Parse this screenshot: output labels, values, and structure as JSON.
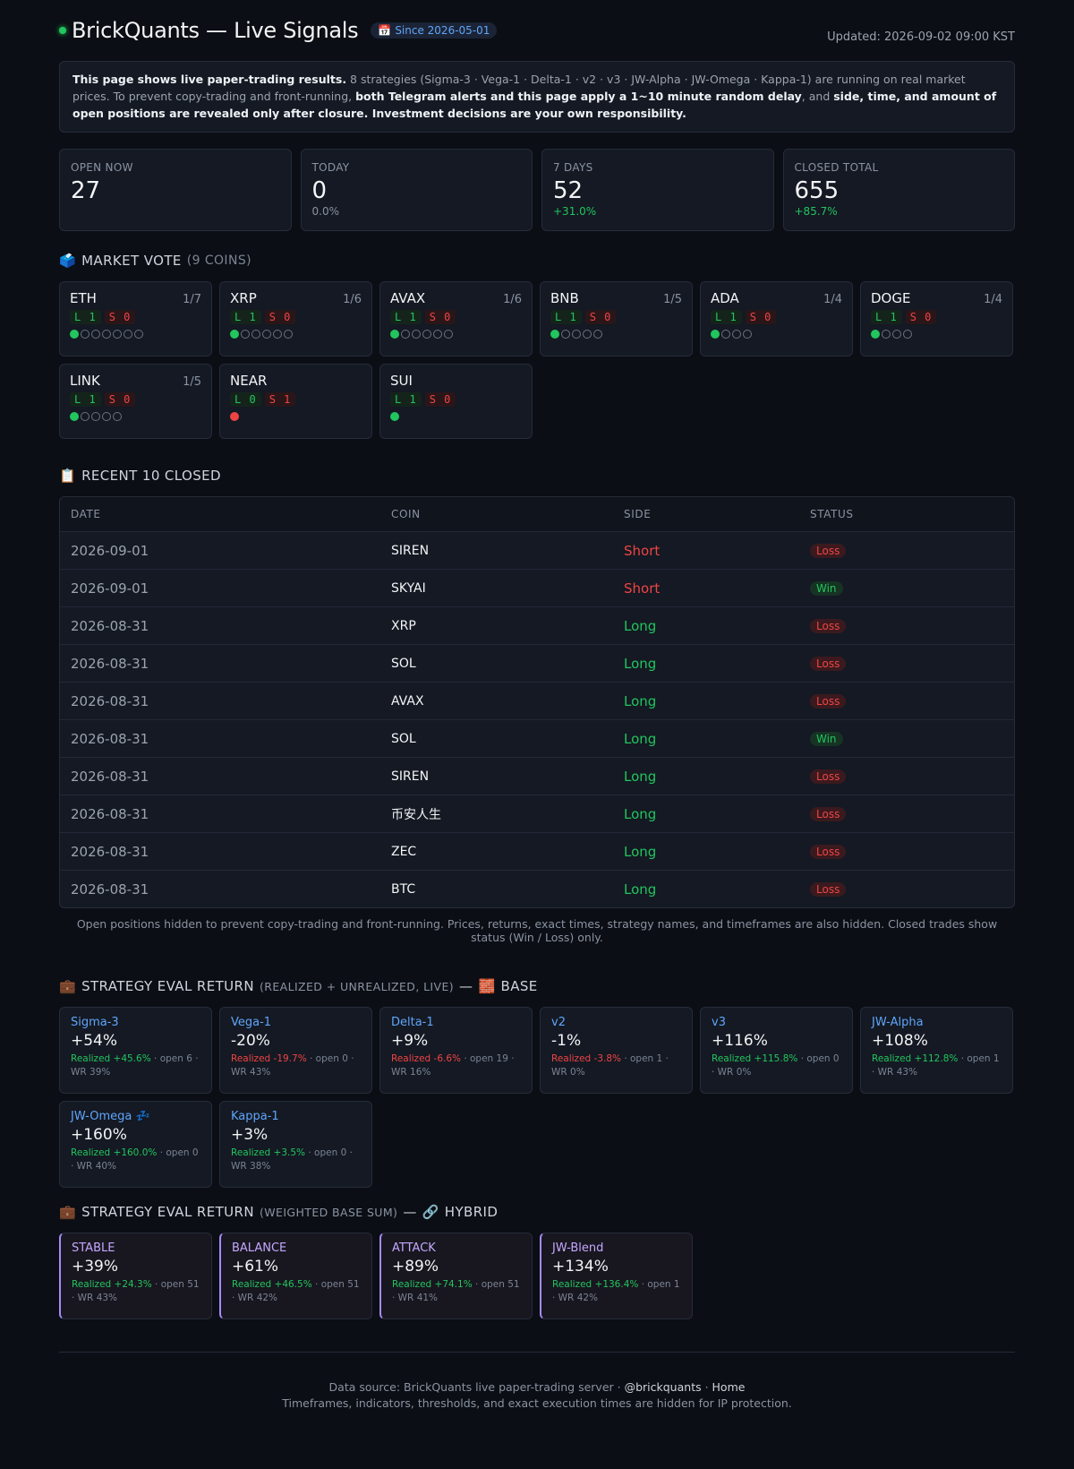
{
  "header": {
    "title": "BrickQuants — Live Signals",
    "since_label": "Since 2026-05-01",
    "updated": "Updated: 2026-09-02 09:00 KST"
  },
  "notice": {
    "p1": "This page shows live paper-trading results.",
    "p2": " 8 strategies (Sigma-3 · Vega-1 · Delta-1 · v2 · v3 · JW-Alpha · JW-Omega · Kappa-1) are running on real market prices. To prevent copy-trading and front-running, ",
    "p3": "both Telegram alerts and this page apply a 1~10 minute random delay",
    "p4": ", and ",
    "p5": "side, time, and amount of open positions are revealed only after closure. Investment decisions are your own responsibility."
  },
  "kpis": [
    {
      "label": "OPEN NOW",
      "value": "27",
      "sub": ""
    },
    {
      "label": "TODAY",
      "value": "0",
      "sub": "0.0%"
    },
    {
      "label": "7 DAYS",
      "value": "52",
      "sub": "+31.0%"
    },
    {
      "label": "CLOSED TOTAL",
      "value": "655",
      "sub": "+85.7%"
    }
  ],
  "market_vote": {
    "title": "MARKET VOTE",
    "count": "(9 COINS)",
    "coins": [
      {
        "coin": "ETH",
        "ratio": "1/7",
        "long": "L 1",
        "short": "S 0",
        "dots": [
          "g",
          "o",
          "o",
          "o",
          "o",
          "o",
          "o"
        ]
      },
      {
        "coin": "XRP",
        "ratio": "1/6",
        "long": "L 1",
        "short": "S 0",
        "dots": [
          "g",
          "o",
          "o",
          "o",
          "o",
          "o"
        ]
      },
      {
        "coin": "AVAX",
        "ratio": "1/6",
        "long": "L 1",
        "short": "S 0",
        "dots": [
          "g",
          "o",
          "o",
          "o",
          "o",
          "o"
        ]
      },
      {
        "coin": "BNB",
        "ratio": "1/5",
        "long": "L 1",
        "short": "S 0",
        "dots": [
          "g",
          "o",
          "o",
          "o",
          "o"
        ]
      },
      {
        "coin": "ADA",
        "ratio": "1/4",
        "long": "L 1",
        "short": "S 0",
        "dots": [
          "g",
          "o",
          "o",
          "o"
        ]
      },
      {
        "coin": "DOGE",
        "ratio": "1/4",
        "long": "L 1",
        "short": "S 0",
        "dots": [
          "g",
          "o",
          "o",
          "o"
        ]
      },
      {
        "coin": "LINK",
        "ratio": "1/5",
        "long": "L 1",
        "short": "S 0",
        "dots": [
          "g",
          "o",
          "o",
          "o",
          "o"
        ]
      },
      {
        "coin": "NEAR",
        "ratio": "",
        "long": "L 0",
        "short": "S 1",
        "dots": [
          "r"
        ]
      },
      {
        "coin": "SUI",
        "ratio": "",
        "long": "L 1",
        "short": "S 0",
        "dots": [
          "g"
        ]
      }
    ]
  },
  "recent": {
    "title": "RECENT 10 CLOSED",
    "columns": [
      "DATE",
      "COIN",
      "SIDE",
      "STATUS"
    ],
    "rows": [
      {
        "date": "2026-09-01",
        "coin": "SIREN",
        "side": "Short",
        "status": "Loss"
      },
      {
        "date": "2026-09-01",
        "coin": "SKYAI",
        "side": "Short",
        "status": "Win"
      },
      {
        "date": "2026-08-31",
        "coin": "XRP",
        "side": "Long",
        "status": "Loss"
      },
      {
        "date": "2026-08-31",
        "coin": "SOL",
        "side": "Long",
        "status": "Loss"
      },
      {
        "date": "2026-08-31",
        "coin": "AVAX",
        "side": "Long",
        "status": "Loss"
      },
      {
        "date": "2026-08-31",
        "coin": "SOL",
        "side": "Long",
        "status": "Win"
      },
      {
        "date": "2026-08-31",
        "coin": "SIREN",
        "side": "Long",
        "status": "Loss"
      },
      {
        "date": "2026-08-31",
        "coin": "币安人生",
        "side": "Long",
        "status": "Loss"
      },
      {
        "date": "2026-08-31",
        "coin": "ZEC",
        "side": "Long",
        "status": "Loss"
      },
      {
        "date": "2026-08-31",
        "coin": "BTC",
        "side": "Long",
        "status": "Loss"
      }
    ],
    "footnote": "Open positions hidden to prevent copy-trading and front-running. Prices, returns, exact times, strategy names, and timeframes are also hidden. Closed trades show status (Win / Loss) only."
  },
  "base": {
    "title": "STRATEGY EVAL RETURN",
    "sub": "(REALIZED + UNREALIZED, LIVE)",
    "dash": "—",
    "tag": "BASE",
    "items": [
      {
        "name": "Sigma-3",
        "ret": "+54%",
        "realized": "Realized +45.6%",
        "rtone": "pos",
        "meta": " · open 6 · WR 39%"
      },
      {
        "name": "Vega-1",
        "ret": "-20%",
        "realized": "Realized -19.7%",
        "rtone": "neg",
        "meta": " · open 0 · WR 43%"
      },
      {
        "name": "Delta-1",
        "ret": "+9%",
        "realized": "Realized -6.6%",
        "rtone": "neg",
        "meta": " · open 19 · WR 16%"
      },
      {
        "name": "v2",
        "ret": "-1%",
        "realized": "Realized -3.8%",
        "rtone": "neg",
        "meta": " · open 1 · WR 0%"
      },
      {
        "name": "v3",
        "ret": "+116%",
        "realized": "Realized +115.8%",
        "rtone": "pos",
        "meta": " · open 0 · WR 0%"
      },
      {
        "name": "JW-Alpha",
        "ret": "+108%",
        "realized": "Realized +112.8%",
        "rtone": "pos",
        "meta": " · open 1 · WR 43%"
      },
      {
        "name": "JW-Omega 💤",
        "ret": "+160%",
        "realized": "Realized +160.0%",
        "rtone": "pos",
        "meta": " · open 0 · WR 40%"
      },
      {
        "name": "Kappa-1",
        "ret": "+3%",
        "realized": "Realized +3.5%",
        "rtone": "pos",
        "meta": " · open 0 · WR 38%"
      }
    ]
  },
  "hybrid": {
    "title": "STRATEGY EVAL RETURN",
    "sub": "(WEIGHTED BASE SUM)",
    "dash": "—",
    "tag": "HYBRID",
    "items": [
      {
        "name": "STABLE",
        "ret": "+39%",
        "realized": "Realized +24.3%",
        "rtone": "pos",
        "meta": " · open 51 · WR 43%"
      },
      {
        "name": "BALANCE",
        "ret": "+61%",
        "realized": "Realized +46.5%",
        "rtone": "pos",
        "meta": " · open 51 · WR 42%"
      },
      {
        "name": "ATTACK",
        "ret": "+89%",
        "realized": "Realized +74.1%",
        "rtone": "pos",
        "meta": " · open 51 · WR 41%"
      },
      {
        "name": "JW-Blend",
        "ret": "+134%",
        "realized": "Realized +136.4%",
        "rtone": "pos",
        "meta": " · open 1 · WR 42%"
      }
    ]
  },
  "footer": {
    "source": "Data source: BrickQuants live paper-trading server · ",
    "handle": "@brickquants",
    "sep": " · ",
    "home": "Home",
    "ip": "Timeframes, indicators, thresholds, and exact execution times are hidden for IP protection."
  },
  "colors": {
    "long": "#22c55e",
    "short": "#ef4444",
    "accent": "#60a5fa",
    "hybrid": "#a78bfa"
  }
}
